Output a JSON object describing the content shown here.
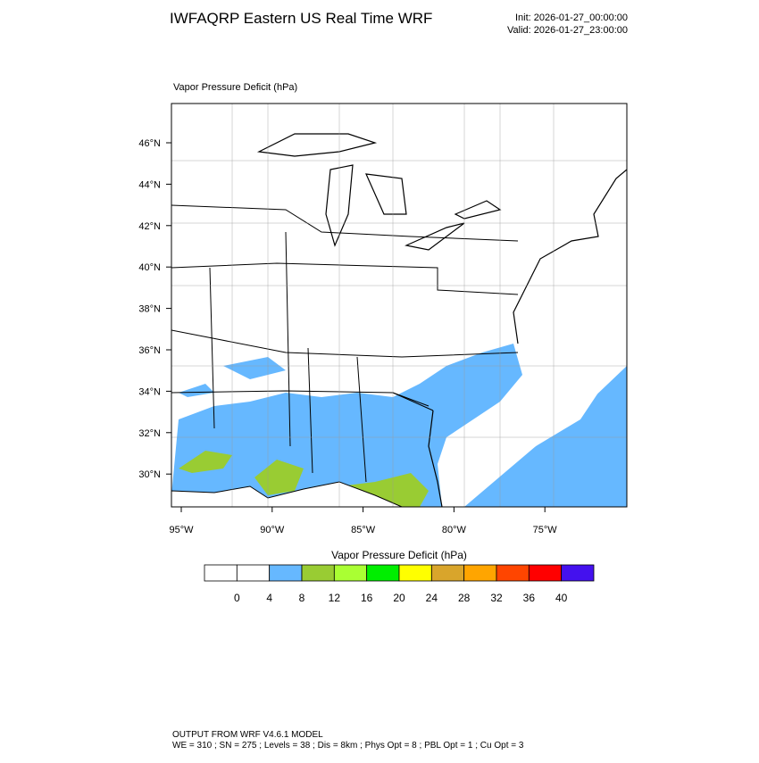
{
  "header": {
    "title": "IWFAQRP Eastern US Real Time WRF",
    "init": "Init: 2026-01-27_00:00:00",
    "valid": "Valid: 2026-01-27_23:00:00"
  },
  "map": {
    "subtitle": "Vapor Pressure Deficit   (hPa)",
    "lat_labels": [
      "46°N",
      "44°N",
      "42°N",
      "40°N",
      "38°N",
      "36°N",
      "34°N",
      "32°N",
      "30°N"
    ],
    "lon_labels": [
      "95°W",
      "90°W",
      "85°W",
      "80°W",
      "75°W"
    ]
  },
  "colorbar": {
    "title": "Vapor Pressure Deficit  (hPa)",
    "colors": [
      "#ffffff",
      "#ffffff",
      "#66b8ff",
      "#99cc33",
      "#aaff33",
      "#00ee00",
      "#ffff00",
      "#d9a52b",
      "#ffa500",
      "#ff4500",
      "#ff0000",
      "#4411ee"
    ],
    "labels": [
      0,
      4,
      8,
      12,
      16,
      20,
      24,
      28,
      32,
      36,
      40
    ]
  },
  "footer": {
    "line1": "OUTPUT FROM WRF V4.6.1 MODEL",
    "line2": "WE = 310 ; SN = 275 ; Levels = 38 ; Dis = 8km ; Phys Opt = 8 ; PBL Opt = 1 ; Cu Opt = 3"
  }
}
